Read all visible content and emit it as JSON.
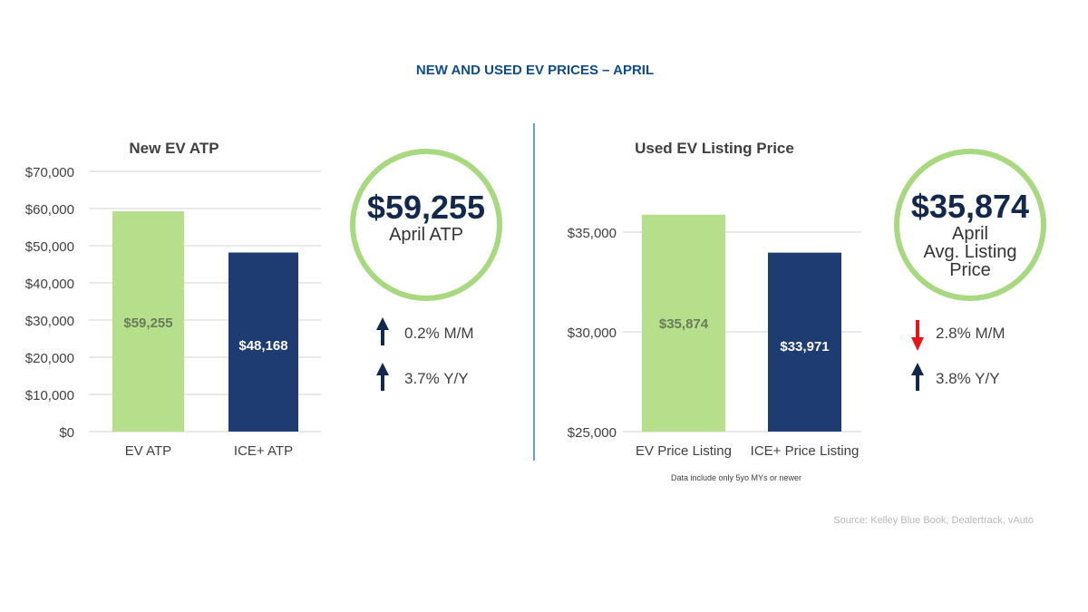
{
  "title": "NEW AND USED EV PRICES – APRIL",
  "colors": {
    "title": "#0f4c8c",
    "green": "#b5df8b",
    "navy": "#1e3c72",
    "circle": "#a8d880",
    "divider": "#2f7fc1",
    "down": "#e8141b",
    "up": "#13294b"
  },
  "chart_data": [
    {
      "type": "bar",
      "title": "New EV ATP",
      "categories": [
        "EV ATP",
        "ICE+ ATP"
      ],
      "values": [
        59255,
        48168
      ],
      "data_labels": [
        "$59,255",
        "$48,168"
      ],
      "ylim": [
        0,
        70000
      ],
      "yticks": [
        0,
        10000,
        20000,
        30000,
        40000,
        50000,
        60000,
        70000
      ],
      "ytick_labels": [
        "$0",
        "$10,000",
        "$20,000",
        "$30,000",
        "$40,000",
        "$50,000",
        "$60,000",
        "$70,000"
      ],
      "grid": true
    },
    {
      "type": "bar",
      "title": "Used EV Listing Price",
      "categories": [
        "EV Price Listing",
        "ICE+ Price Listing"
      ],
      "values": [
        35874,
        33971
      ],
      "data_labels": [
        "$35,874",
        "$33,971"
      ],
      "ylim": [
        25000,
        36000
      ],
      "yticks": [
        25000,
        30000,
        35000
      ],
      "ytick_labels": [
        "$25,000",
        "$30,000",
        "$35,000"
      ],
      "grid": true,
      "note": "Data include only 5yo MYs or newer"
    }
  ],
  "callouts": [
    {
      "value": "$59,255",
      "lines": [
        "April ATP"
      ],
      "changes": [
        {
          "dir": "up",
          "text": "0.2% M/M"
        },
        {
          "dir": "up",
          "text": "3.7% Y/Y"
        }
      ]
    },
    {
      "value": "$35,874",
      "lines": [
        "April",
        "Avg. Listing",
        "Price"
      ],
      "changes": [
        {
          "dir": "down",
          "text": "2.8% M/M"
        },
        {
          "dir": "up",
          "text": "3.8% Y/Y"
        }
      ]
    }
  ],
  "source": "Source: Kelley Blue Book, Dealertrack, vAuto"
}
